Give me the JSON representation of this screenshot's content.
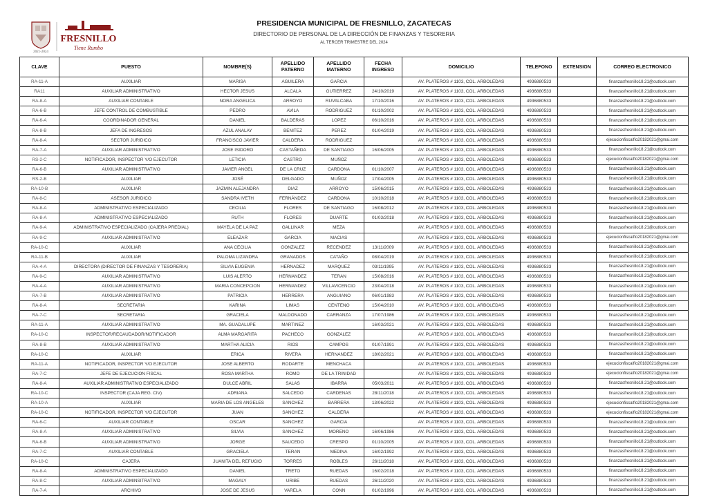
{
  "header": {
    "title": "PRESIDENCIA MUNICIPAL DE FRESNILLO, ZACATECAS",
    "subtitle": "DIRECTORIO DE PERSONAL DE LA DIRECCIÓN DE FINANZAS Y TESORERIA",
    "period": "AL TERCER TRIMESTRE DEL 2024",
    "logo_text": "FRESNILLO",
    "logo_slogan": "Tiene Rumbo",
    "seal_text": "2021-2024",
    "brand_color": "#8b1a1a"
  },
  "table": {
    "columns": [
      "CLAVE",
      "PUESTO",
      "NOMBRE(S)",
      "APELLIDO PATERNO",
      "APELLIDO MATERNO",
      "FECHA INGRESO",
      "DOMICILIO",
      "TELEFONO",
      "EXTENSION",
      "CORREO ELECTRONICO"
    ],
    "domicilio": "AV. PLATEROS # 1103, COL. ARBOLEDAS",
    "telefono": "4936880533",
    "email_a": "finanzasfresnillo18.21@outlook.com",
    "email_b": "ejecucionfiscalflo20182021@gmai.com",
    "rows": [
      [
        "RA-11-A",
        "AUXILIAR",
        "MARISA",
        "AGUILERA",
        "GARCIA",
        "",
        "a"
      ],
      [
        "RA11",
        "AUXILIAR ADMINISTRATIVO",
        "HECTOR JESUS",
        "ALCALA",
        "GUTIERREZ",
        "24/10/2019",
        "a"
      ],
      [
        "RA-8-A",
        "AUXILIAR CONTABLE",
        "NORA ANGELICA",
        "ARROYO",
        "RUVALCABA",
        "17/10/2016",
        "a"
      ],
      [
        "RA-6-B",
        "JEFE CONTROL DE COMBUSTIBLE",
        "PEDRO",
        "AVILA",
        "RODRIGUEZ",
        "01/10/2002",
        "a"
      ],
      [
        "RA-6-A",
        "COORDINADOR GENERAL",
        "DANIEL",
        "BALDERAS",
        "LOPEZ",
        "06/10/2016",
        "a"
      ],
      [
        "RA-8-B",
        "JEFA DE INGRESOS",
        "AZUL ANALAY",
        "BENITEZ",
        "PEREZ",
        "01/04/2019",
        "a"
      ],
      [
        "RA-8-A",
        "SECTOR JURIDICO",
        "FRANCISCO JAVIER",
        "CALDERA",
        "RODRIGUEZ",
        "",
        "b"
      ],
      [
        "RA-7-A",
        "AUXILIAR ADMINISTRATIVO",
        "JOSE ISIDORO",
        "CASTAÑEDA",
        "DE SANTIAGO",
        "16/06/2005",
        "a"
      ],
      [
        "RS-2-C",
        "NOTIFICADOR, INSPECTOR Y/O EJECUTOR",
        "LETICIA",
        "CASTRO",
        "MUÑOZ",
        "",
        "b"
      ],
      [
        "RA-6-B",
        "AUXILIAR ADMINISTRATIVO",
        "JAVIER ANGEL",
        "DE LA CRUZ",
        "CARDONA",
        "01/10/2007",
        "a"
      ],
      [
        "RS-2-B",
        "AUXILIAR",
        "JOSÉ",
        "DELGADO",
        "MUÑOZ",
        "17/04/2005",
        "a"
      ],
      [
        "RA-10-B",
        "AUXILIAR",
        "JAZMIN ALEJANDRA",
        "DIAZ",
        "ARROYO",
        "15/06/2015",
        "a"
      ],
      [
        "RA-8-C",
        "ASESOR JURIDICO",
        "SANDRA IVETH",
        "FERNÁNDEZ",
        "CARDONA",
        "10/10/2018",
        "a"
      ],
      [
        "RA-8-A",
        "ADMINISTRATIVO ESPECIALIZADO",
        "CECILIA",
        "FLORES",
        "DE SANTIAGO",
        "16/08/2012",
        "a"
      ],
      [
        "RA-8-A",
        "ADMINISTRATIVO ESPECIALIZADO",
        "RUTH",
        "FLORES",
        "DUARTE",
        "01/03/2018",
        "a"
      ],
      [
        "RA-9-A",
        "ADMINISTRATIVO ESPECIALIZADO (CAJERA PREDIAL)",
        "MAYELA DE LA PAZ",
        "GALLINAR",
        "MEZA",
        "",
        "a"
      ],
      [
        "RA-9-C",
        "AUXILIAR ADMINISTRATIVO",
        "ELEAZAR",
        "GARCIA",
        "MACIAS",
        "",
        "b"
      ],
      [
        "RA-10-C",
        "AUXILIAR",
        "ANA CECILIA",
        "GONZALEZ",
        "RECENDEZ",
        "13/11/2009",
        "a"
      ],
      [
        "RA-11-B",
        "AUXILIAR",
        "PALOMA LIZANDRA",
        "GRANADOS",
        "CATAÑO",
        "08/04/2019",
        "a"
      ],
      [
        "RA-4-A",
        "DIRECTORA (DIRECTOR DE FINANZAS Y TESORERIA)",
        "SILVIA EUGENIA",
        "HERNADEZ",
        "MARQUEZ",
        "03/11/1995",
        "a"
      ],
      [
        "RA-9-C",
        "AUXILIAR ADMINISTRATIVO",
        "LUIS ALERTO",
        "HERNANDEZ",
        "TERAN",
        "15/08/2016",
        "a"
      ],
      [
        "RA-4-A",
        "AUXILIAR ADMINISTRATIVO",
        "MARIA CONCEPCION",
        "HERNANDEZ",
        "VILLAVICENCIO",
        "23/04/2018",
        "a"
      ],
      [
        "RA-7-B",
        "AUXILIAR ADMINISTRATIVO",
        "PATRICIA",
        "HERRERA",
        "ANGUIANO",
        "06/01/1983",
        "a"
      ],
      [
        "RA-8-A",
        "SECRETARIA",
        "KARINA",
        "LIMAS",
        "CENTENO",
        "15/04/2010",
        "a"
      ],
      [
        "RA-7-C",
        "SECRETARIA",
        "GRACIELA",
        "MALDONADO",
        "CARRANZA",
        "17/07/1986",
        "a"
      ],
      [
        "RA-11-A",
        "AUXILIAR ADMINISTRATIVO",
        "MA. GUADALUPE",
        "MARTINEZ",
        "",
        "16/03/2021",
        "a"
      ],
      [
        "RA-10-C",
        "INSPECTOR/RECAUDADOR/NOTIFICADOR",
        "ALMA MARGARITA",
        "PACHECO",
        "GONZALEZ",
        "",
        "a"
      ],
      [
        "RA-8-B",
        "AUXILIAR ADMINISTRATIVO",
        "MARTHA ALICIA",
        "RIOS",
        "CAMPOS",
        "01/07/1991",
        "a"
      ],
      [
        "RA-10-C",
        "AUXILIAR",
        "ERICA",
        "RIVERA",
        "HERNANDEZ",
        "18/02/2021",
        "a"
      ],
      [
        "RA-11-A",
        "NOTIFICADOR, INSPECTOR Y/O EJECUTOR",
        "JOSE ALBERTO",
        "RODARTE",
        "MENCHACA",
        "",
        "b"
      ],
      [
        "RA-7-C",
        "JEFE DE EJECUCION FISCAL",
        "ROSA MARTHA",
        "ROMO",
        "DE LA TRINIDAD",
        "",
        "b"
      ],
      [
        "RA-8-A",
        "AUXILIAR ADMINISTRATIVO ESPECIALIZADO",
        "DULCE ABRIL",
        "SALAS",
        "IBARRA",
        "05/03/2011",
        "a"
      ],
      [
        "RA-10-C",
        "INSPECTOR (CAJA REG. CIV)",
        "ADRIANA",
        "SALCEDO",
        "CARDENAS",
        "28/11/2018",
        "a"
      ],
      [
        "RA-10-A",
        "AUXILIAR",
        "MARIA DE LOS ANGELES",
        "SANCHEZ",
        "BARRERA",
        "13/06/2022",
        "b"
      ],
      [
        "RA-10-C",
        "NOTIFICADOR, INSPECTOR Y/O EJECUTOR",
        "JUAN",
        "SANCHEZ",
        "CALDERA",
        "",
        "b"
      ],
      [
        "RA-6-C",
        "AUXILIAR CONTABLE",
        "OSCAR",
        "SANCHEZ",
        "GARCIA",
        "",
        "a"
      ],
      [
        "RA-8-A",
        "AUXILIAR ADMINISTRATIVO",
        "SILVIA",
        "SANCHEZ",
        "MORENO",
        "16/06/1986",
        "a"
      ],
      [
        "RA-6-B",
        "AUXILIAR ADMINISTRATIVO",
        "JORGE",
        "SAUCEDO",
        "CRESPO",
        "01/10/2005",
        "a"
      ],
      [
        "RA-7-C",
        "AUXILIAR CONTABLE",
        "GRACIELA",
        "TERAN",
        "MEDINA",
        "16/02/1992",
        "a"
      ],
      [
        "RA-10-C",
        "CAJERA",
        "JUANITA DEL REFUGIO",
        "TORRES",
        "ROBLES",
        "26/11/2018",
        "a"
      ],
      [
        "RA-8-A",
        "ADMINISTRATIVO ESPECIALIZADO",
        "DANIEL",
        "TRETO",
        "RUEDAS",
        "16/02/2018",
        "a"
      ],
      [
        "RA-8-C",
        "AUXILIAR ADMINSITRATIVO",
        "MAGALY",
        "URIBE",
        "RUEDAS",
        "26/11/2020",
        "a"
      ],
      [
        "RA-7-A",
        "ARCHIVO",
        "JOSE DE JESUS",
        "VARELA",
        "CONN",
        "01/02/1996",
        "a"
      ]
    ]
  }
}
